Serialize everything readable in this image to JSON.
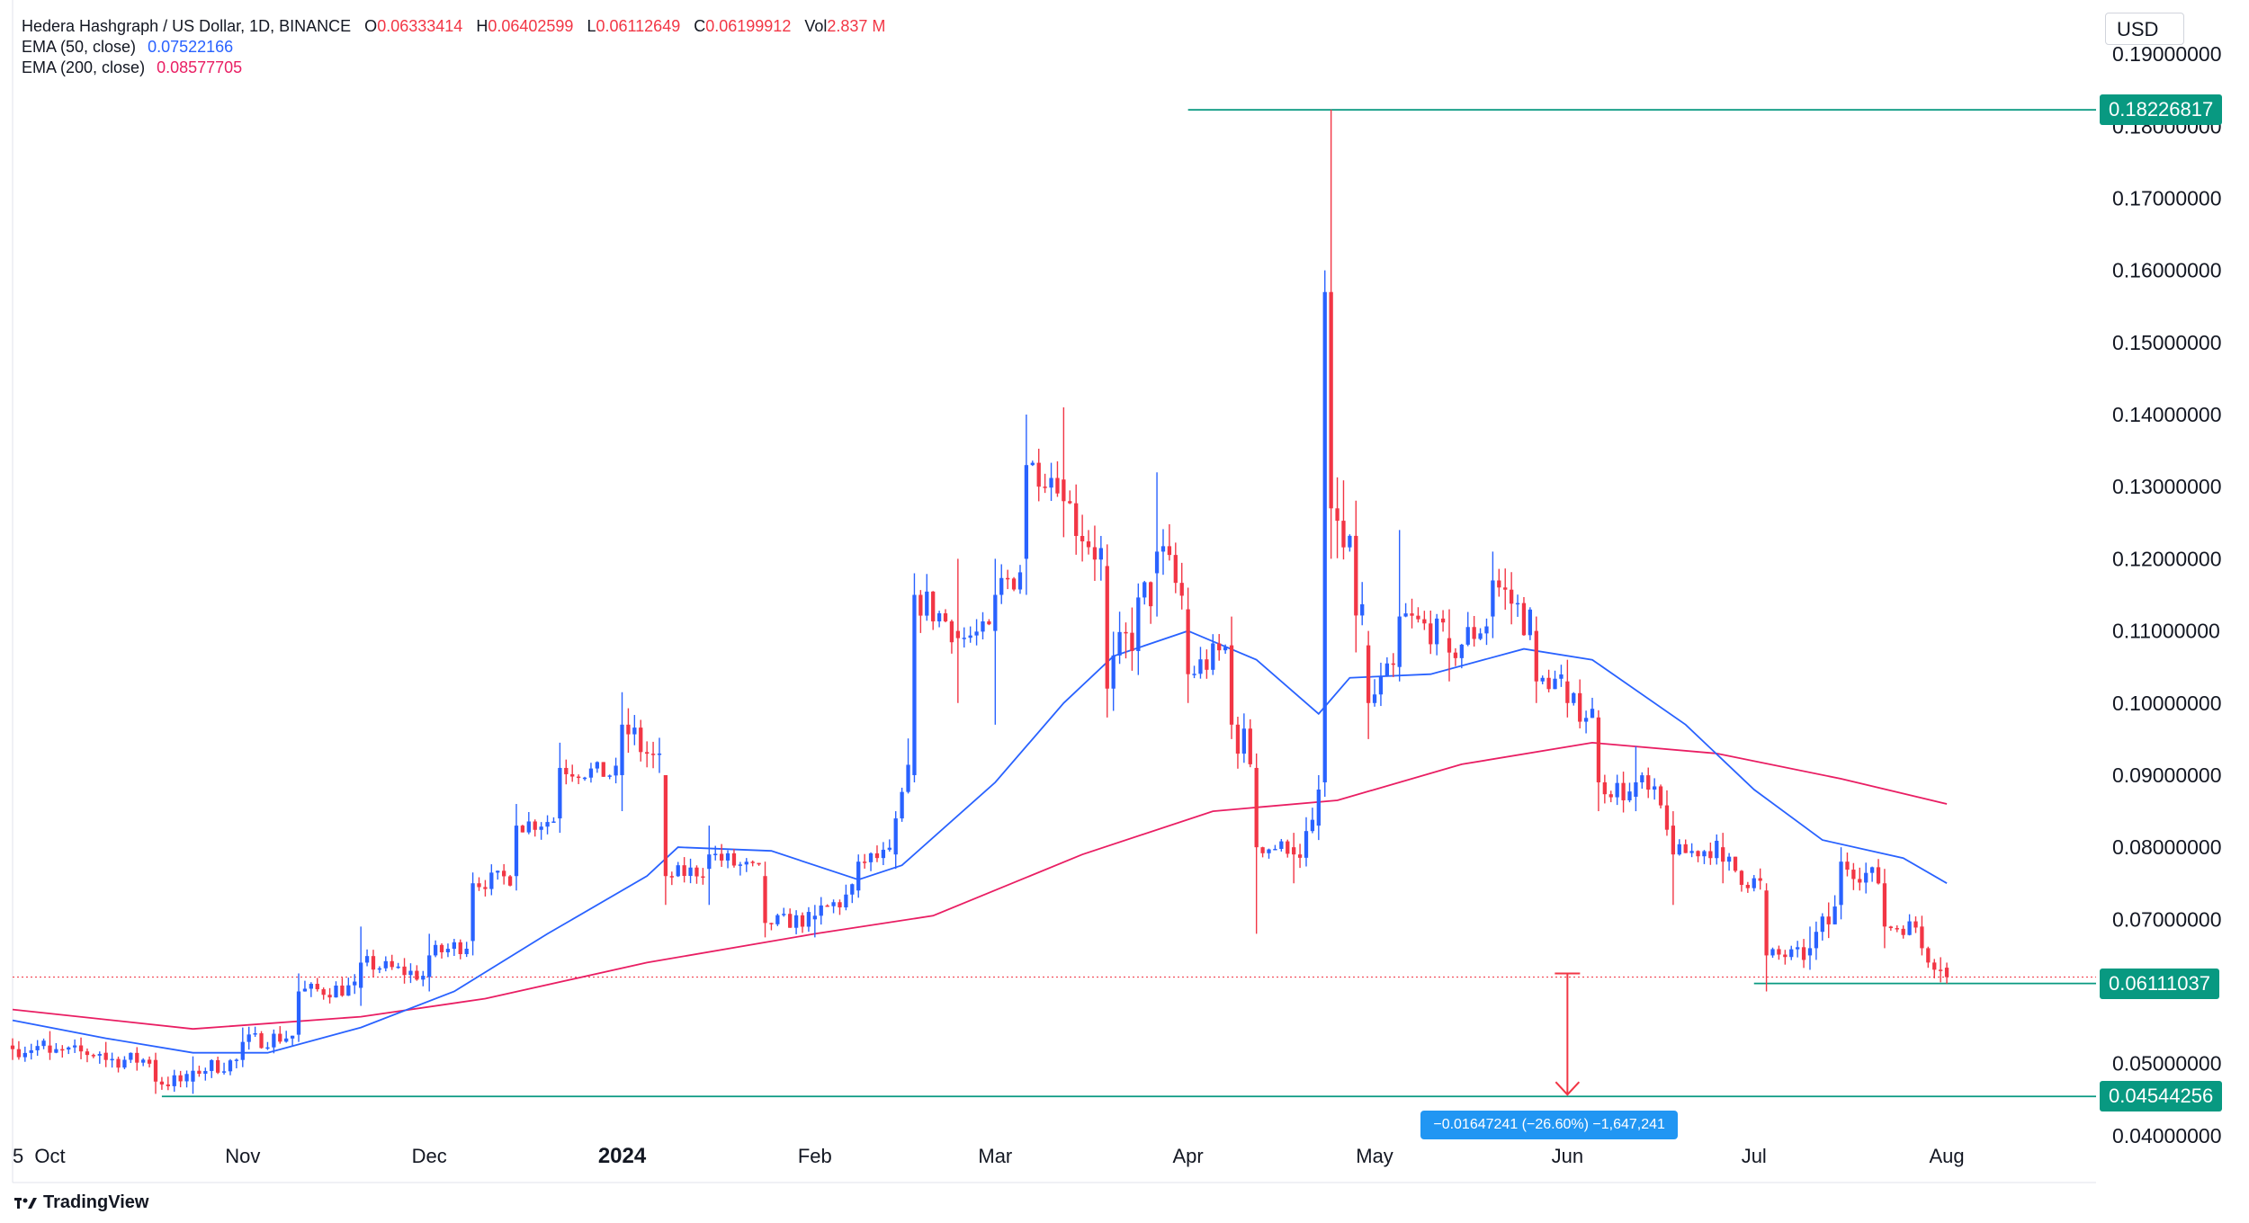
{
  "legend": {
    "symbol": "Hedera Hashgraph / US Dollar, 1D, BINANCE",
    "o_label": "O",
    "o_value": "0.06333414",
    "h_label": "H",
    "h_value": "0.06402599",
    "l_label": "L",
    "l_value": "0.06112649",
    "c_label": "C",
    "c_value": "0.06199912",
    "vol_label": "Vol",
    "vol_value": "2.837 M",
    "ema50_label": "EMA (50, close)",
    "ema50_value": "0.07522166",
    "ema200_label": "EMA (200, close)",
    "ema200_value": "0.08577705"
  },
  "currency": "USD",
  "brand": "TradingView",
  "price_tags": {
    "high": "0.18226817",
    "current": "0.06111037",
    "target": "0.04544256"
  },
  "measure_label": "−0.01647241 (−26.60%) −1,647,241",
  "colors": {
    "up": "#2962ff",
    "down": "#f23645",
    "ema50": "#2962ff",
    "ema200": "#e91e63",
    "level_line": "#089981",
    "measure": "#f23645"
  },
  "chart_data": {
    "type": "candlestick",
    "title": "Hedera Hashgraph / US Dollar, 1D, BINANCE",
    "y_tick_labels": [
      "0.19000000",
      "0.18000000",
      "0.17000000",
      "0.16000000",
      "0.15000000",
      "0.14000000",
      "0.13000000",
      "0.12000000",
      "0.11000000",
      "0.10000000",
      "0.09000000",
      "0.08000000",
      "0.07000000",
      "0.05000000",
      "0.04000000"
    ],
    "y_ticks": [
      0.19,
      0.18,
      0.17,
      0.16,
      0.15,
      0.14,
      0.13,
      0.12,
      0.11,
      0.1,
      0.09,
      0.08,
      0.07,
      0.05,
      0.04
    ],
    "x_tick_labels": [
      "5",
      "Oct",
      "Nov",
      "Dec",
      "2024",
      "Feb",
      "Mar",
      "Apr",
      "May",
      "Jun",
      "Jul",
      "Aug"
    ],
    "x_ticks": [
      "2023-09-25",
      "2023-10-01",
      "2023-11-01",
      "2023-12-01",
      "2024-01-01",
      "2024-02-01",
      "2024-03-01",
      "2024-04-01",
      "2024-05-01",
      "2024-06-01",
      "2024-07-01",
      "2024-08-01"
    ],
    "ylim": [
      0.0335,
      0.1975
    ],
    "xlim": [
      "2023-09-25",
      "2024-08-25"
    ],
    "grid": false,
    "ohlc_anchors": [
      {
        "date": "2023-09-25",
        "o": 0.0525,
        "h": 0.0535,
        "l": 0.0505,
        "c": 0.052
      },
      {
        "date": "2023-10-01",
        "o": 0.0525,
        "h": 0.0545,
        "l": 0.0505,
        "c": 0.0515
      },
      {
        "date": "2023-10-10",
        "o": 0.0515,
        "h": 0.053,
        "l": 0.0495,
        "c": 0.0505
      },
      {
        "date": "2023-10-18",
        "o": 0.0505,
        "h": 0.0515,
        "l": 0.0458,
        "c": 0.0475
      },
      {
        "date": "2023-10-24",
        "o": 0.0475,
        "h": 0.051,
        "l": 0.0458,
        "c": 0.049
      },
      {
        "date": "2023-11-01",
        "o": 0.0505,
        "h": 0.055,
        "l": 0.0495,
        "c": 0.053
      },
      {
        "date": "2023-11-10",
        "o": 0.054,
        "h": 0.0625,
        "l": 0.053,
        "c": 0.06
      },
      {
        "date": "2023-11-20",
        "o": 0.0605,
        "h": 0.069,
        "l": 0.058,
        "c": 0.064
      },
      {
        "date": "2023-12-01",
        "o": 0.062,
        "h": 0.068,
        "l": 0.06,
        "c": 0.065
      },
      {
        "date": "2023-12-08",
        "o": 0.067,
        "h": 0.0765,
        "l": 0.065,
        "c": 0.075
      },
      {
        "date": "2023-12-15",
        "o": 0.076,
        "h": 0.086,
        "l": 0.074,
        "c": 0.083
      },
      {
        "date": "2023-12-22",
        "o": 0.084,
        "h": 0.0945,
        "l": 0.082,
        "c": 0.091
      },
      {
        "date": "2024-01-01",
        "o": 0.09,
        "h": 0.1015,
        "l": 0.085,
        "c": 0.097
      },
      {
        "date": "2024-01-08",
        "o": 0.09,
        "h": 0.09,
        "l": 0.072,
        "c": 0.076
      },
      {
        "date": "2024-01-15",
        "o": 0.077,
        "h": 0.083,
        "l": 0.072,
        "c": 0.079
      },
      {
        "date": "2024-01-24",
        "o": 0.076,
        "h": 0.078,
        "l": 0.0675,
        "c": 0.0695
      },
      {
        "date": "2024-02-01",
        "o": 0.07,
        "h": 0.072,
        "l": 0.0675,
        "c": 0.0705
      },
      {
        "date": "2024-02-08",
        "o": 0.074,
        "h": 0.079,
        "l": 0.073,
        "c": 0.078
      },
      {
        "date": "2024-02-14",
        "o": 0.079,
        "h": 0.085,
        "l": 0.077,
        "c": 0.084
      },
      {
        "date": "2024-02-17",
        "o": 0.09,
        "h": 0.118,
        "l": 0.089,
        "c": 0.115
      },
      {
        "date": "2024-02-24",
        "o": 0.11,
        "h": 0.12,
        "l": 0.1,
        "c": 0.109
      },
      {
        "date": "2024-03-01",
        "o": 0.11,
        "h": 0.12,
        "l": 0.097,
        "c": 0.115
      },
      {
        "date": "2024-03-06",
        "o": 0.12,
        "h": 0.14,
        "l": 0.115,
        "c": 0.133
      },
      {
        "date": "2024-03-12",
        "o": 0.131,
        "h": 0.141,
        "l": 0.123,
        "c": 0.128
      },
      {
        "date": "2024-03-19",
        "o": 0.119,
        "h": 0.122,
        "l": 0.098,
        "c": 0.102
      },
      {
        "date": "2024-03-27",
        "o": 0.118,
        "h": 0.132,
        "l": 0.112,
        "c": 0.121
      },
      {
        "date": "2024-04-01",
        "o": 0.113,
        "h": 0.116,
        "l": 0.1,
        "c": 0.104
      },
      {
        "date": "2024-04-08",
        "o": 0.108,
        "h": 0.112,
        "l": 0.095,
        "c": 0.097
      },
      {
        "date": "2024-04-12",
        "o": 0.091,
        "h": 0.093,
        "l": 0.068,
        "c": 0.08
      },
      {
        "date": "2024-04-18",
        "o": 0.08,
        "h": 0.082,
        "l": 0.075,
        "c": 0.079
      },
      {
        "date": "2024-04-22",
        "o": 0.083,
        "h": 0.09,
        "l": 0.081,
        "c": 0.088
      },
      {
        "date": "2024-04-23",
        "o": 0.089,
        "h": 0.16,
        "l": 0.087,
        "c": 0.157
      },
      {
        "date": "2024-04-24",
        "o": 0.157,
        "h": 0.1823,
        "l": 0.12,
        "c": 0.127
      },
      {
        "date": "2024-04-30",
        "o": 0.108,
        "h": 0.11,
        "l": 0.095,
        "c": 0.1
      },
      {
        "date": "2024-05-05",
        "o": 0.105,
        "h": 0.124,
        "l": 0.103,
        "c": 0.112
      },
      {
        "date": "2024-05-13",
        "o": 0.109,
        "h": 0.113,
        "l": 0.103,
        "c": 0.107
      },
      {
        "date": "2024-05-20",
        "o": 0.112,
        "h": 0.121,
        "l": 0.109,
        "c": 0.117
      },
      {
        "date": "2024-05-27",
        "o": 0.11,
        "h": 0.112,
        "l": 0.1,
        "c": 0.103
      },
      {
        "date": "2024-06-01",
        "o": 0.103,
        "h": 0.106,
        "l": 0.098,
        "c": 0.1
      },
      {
        "date": "2024-06-06",
        "o": 0.098,
        "h": 0.099,
        "l": 0.085,
        "c": 0.089
      },
      {
        "date": "2024-06-12",
        "o": 0.087,
        "h": 0.094,
        "l": 0.085,
        "c": 0.089
      },
      {
        "date": "2024-06-18",
        "o": 0.083,
        "h": 0.085,
        "l": 0.072,
        "c": 0.079
      },
      {
        "date": "2024-06-26",
        "o": 0.08,
        "h": 0.082,
        "l": 0.075,
        "c": 0.078
      },
      {
        "date": "2024-07-03",
        "o": 0.074,
        "h": 0.075,
        "l": 0.06,
        "c": 0.065
      },
      {
        "date": "2024-07-10",
        "o": 0.065,
        "h": 0.069,
        "l": 0.063,
        "c": 0.066
      },
      {
        "date": "2024-07-15",
        "o": 0.072,
        "h": 0.08,
        "l": 0.07,
        "c": 0.078
      },
      {
        "date": "2024-07-22",
        "o": 0.075,
        "h": 0.077,
        "l": 0.066,
        "c": 0.069
      },
      {
        "date": "2024-07-28",
        "o": 0.069,
        "h": 0.0705,
        "l": 0.065,
        "c": 0.066
      },
      {
        "date": "2024-08-01",
        "o": 0.0633,
        "h": 0.064,
        "l": 0.0611,
        "c": 0.062
      }
    ],
    "ema50": [
      {
        "date": "2023-09-25",
        "v": 0.056
      },
      {
        "date": "2023-10-10",
        "v": 0.0535
      },
      {
        "date": "2023-10-24",
        "v": 0.0515
      },
      {
        "date": "2023-11-05",
        "v": 0.0515
      },
      {
        "date": "2023-11-20",
        "v": 0.055
      },
      {
        "date": "2023-12-05",
        "v": 0.06
      },
      {
        "date": "2023-12-20",
        "v": 0.068
      },
      {
        "date": "2024-01-05",
        "v": 0.076
      },
      {
        "date": "2024-01-10",
        "v": 0.08
      },
      {
        "date": "2024-01-25",
        "v": 0.0795
      },
      {
        "date": "2024-02-08",
        "v": 0.0755
      },
      {
        "date": "2024-02-15",
        "v": 0.0775
      },
      {
        "date": "2024-03-01",
        "v": 0.089
      },
      {
        "date": "2024-03-12",
        "v": 0.1
      },
      {
        "date": "2024-03-20",
        "v": 0.1065
      },
      {
        "date": "2024-04-01",
        "v": 0.11
      },
      {
        "date": "2024-04-12",
        "v": 0.106
      },
      {
        "date": "2024-04-22",
        "v": 0.0985
      },
      {
        "date": "2024-04-27",
        "v": 0.1035
      },
      {
        "date": "2024-05-10",
        "v": 0.104
      },
      {
        "date": "2024-05-25",
        "v": 0.1075
      },
      {
        "date": "2024-06-05",
        "v": 0.106
      },
      {
        "date": "2024-06-20",
        "v": 0.097
      },
      {
        "date": "2024-07-01",
        "v": 0.088
      },
      {
        "date": "2024-07-12",
        "v": 0.081
      },
      {
        "date": "2024-07-25",
        "v": 0.0785
      },
      {
        "date": "2024-08-01",
        "v": 0.075
      }
    ],
    "ema200": [
      {
        "date": "2023-09-25",
        "v": 0.0575
      },
      {
        "date": "2023-10-24",
        "v": 0.0548
      },
      {
        "date": "2023-11-20",
        "v": 0.0565
      },
      {
        "date": "2023-12-10",
        "v": 0.059
      },
      {
        "date": "2024-01-05",
        "v": 0.064
      },
      {
        "date": "2024-02-01",
        "v": 0.068
      },
      {
        "date": "2024-02-20",
        "v": 0.0705
      },
      {
        "date": "2024-03-15",
        "v": 0.079
      },
      {
        "date": "2024-04-05",
        "v": 0.085
      },
      {
        "date": "2024-04-25",
        "v": 0.0865
      },
      {
        "date": "2024-05-15",
        "v": 0.0915
      },
      {
        "date": "2024-06-05",
        "v": 0.0945
      },
      {
        "date": "2024-06-25",
        "v": 0.093
      },
      {
        "date": "2024-07-15",
        "v": 0.0895
      },
      {
        "date": "2024-08-01",
        "v": 0.086
      }
    ],
    "levels": [
      {
        "price": 0.18226817,
        "from": "2024-04-01"
      },
      {
        "price": 0.06111037,
        "from": "2024-07-01"
      },
      {
        "price": 0.04544256,
        "from": "2023-10-19"
      }
    ],
    "measure": {
      "date": "2024-06-01",
      "from": 0.0625,
      "to": 0.04544256,
      "label": "−0.01647241 (−26.60%) −1,647,241"
    },
    "current_price": 0.06199912
  }
}
